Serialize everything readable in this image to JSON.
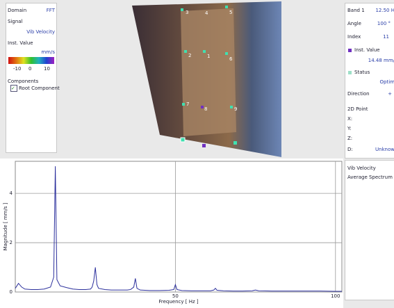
{
  "left_panel": {
    "domain_label": "Domain",
    "domain_value": "FFT",
    "signal_label": "Signal",
    "signal_value": "Vib Velocity",
    "inst_label": "Inst. Value",
    "unit": "mm/s",
    "scale_labels": [
      "-10",
      "0",
      "10"
    ],
    "components_label": "Components",
    "component": "Root Component"
  },
  "photo": {
    "points": [
      "3",
      "4",
      "5",
      "2",
      "1",
      "6",
      "7",
      "8",
      "9"
    ]
  },
  "right_panel": {
    "band_label": "Band 1",
    "band_value": "12.50 H",
    "angle_label": "Angle",
    "angle_value": "100 °",
    "index_label": "Index",
    "index_value": "11",
    "inst_label": "Inst. Value",
    "inst_value": "14.48 mm/",
    "status_label": "Status",
    "status_value": "Optim",
    "direction_label": "Direction",
    "direction_value": "+",
    "point_label": "2D Point",
    "x_label": "X:",
    "y_label": "Y:",
    "z_label": "Z:",
    "d_label": "D:",
    "d_value": "Unknow"
  },
  "legend_panel": {
    "signal": "Vib Velocity",
    "kind": "Average Spectrum"
  },
  "chart_data": {
    "type": "line",
    "x_label": "Frequency [ Hz ]",
    "y_label": "Magnitude [ mm/s ]",
    "x": [
      0,
      1,
      2,
      3,
      5,
      7,
      9,
      11,
      12,
      12.5,
      13,
      14,
      16,
      18,
      20,
      22,
      23.5,
      24,
      24.5,
      25,
      25.5,
      26,
      28,
      30,
      33,
      35,
      36,
      37,
      37.5,
      38,
      39,
      42,
      45,
      48,
      49.5,
      50,
      50.5,
      52,
      55,
      58,
      61,
      62,
      62.5,
      63,
      65,
      68,
      71,
      74,
      75,
      76,
      80,
      85,
      90,
      95,
      100,
      102
    ],
    "series": [
      {
        "name": "Vib Velocity",
        "color": "#2b2f9c",
        "values": [
          0.15,
          0.35,
          0.2,
          0.12,
          0.1,
          0.1,
          0.12,
          0.2,
          0.6,
          5.1,
          0.5,
          0.25,
          0.18,
          0.12,
          0.1,
          0.1,
          0.12,
          0.2,
          0.45,
          1.0,
          0.3,
          0.15,
          0.1,
          0.08,
          0.08,
          0.08,
          0.1,
          0.2,
          0.55,
          0.15,
          0.08,
          0.06,
          0.06,
          0.07,
          0.1,
          0.3,
          0.1,
          0.06,
          0.05,
          0.05,
          0.05,
          0.08,
          0.15,
          0.07,
          0.05,
          0.04,
          0.04,
          0.05,
          0.08,
          0.05,
          0.04,
          0.04,
          0.04,
          0.04,
          0.03,
          0.03
        ]
      }
    ],
    "xlim": [
      0,
      102
    ],
    "ylim": [
      0,
      5.3
    ],
    "xticks": [
      50,
      100
    ],
    "yticks": [
      0,
      2,
      4
    ],
    "grid": true
  }
}
